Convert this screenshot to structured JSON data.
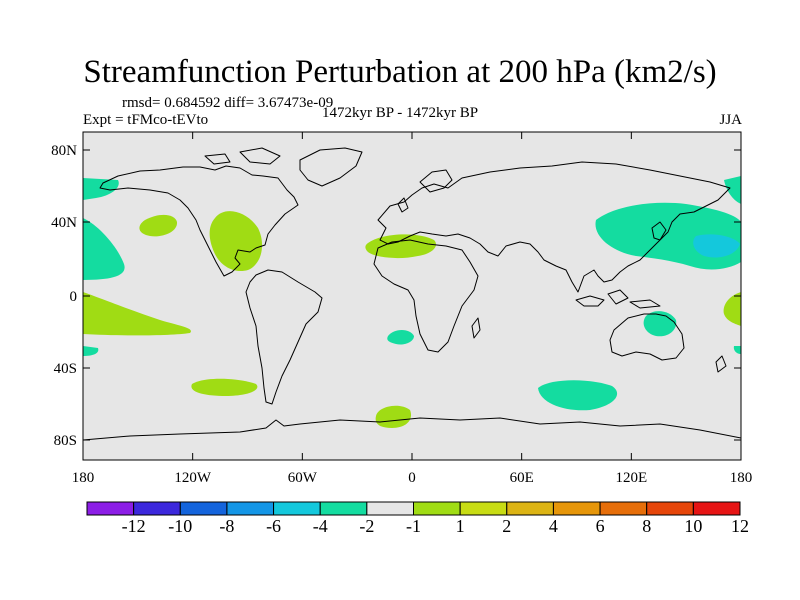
{
  "title": "Streamfunction Perturbation at 200 hPa (km2/s)",
  "stats": "rmsd= 0.684592 diff= 3.67473e-09",
  "experiment": "Expt = tFMco-tEVto",
  "period": "1472kyr BP - 1472kyr BP",
  "season": "JJA",
  "map": {
    "background_color": "#e6e6e6",
    "coastline_color": "#000000",
    "lat_ticks": [
      "80N",
      "40N",
      "0",
      "40S",
      "80S"
    ],
    "lon_ticks": [
      "180",
      "120W",
      "60W",
      "0",
      "60E",
      "120E",
      "180"
    ]
  },
  "colorbar": {
    "colors": [
      "#8c1ee6",
      "#3c28dc",
      "#1464dc",
      "#1496e6",
      "#14c8dc",
      "#14dca0",
      "#e6e6e6",
      "#a0dc14",
      "#c8dc14",
      "#dcb414",
      "#e6960a",
      "#e66e0a",
      "#e6460a",
      "#e61414"
    ],
    "labels": [
      "-12",
      "-10",
      "-8",
      "-6",
      "-4",
      "-2",
      "-1",
      "1",
      "2",
      "4",
      "6",
      "8",
      "10",
      "12"
    ]
  },
  "shading_colors": {
    "positive_1_2": "#a0dc14",
    "negative_1_2": "#14dca0",
    "negative_2_4": "#14c8dc"
  }
}
